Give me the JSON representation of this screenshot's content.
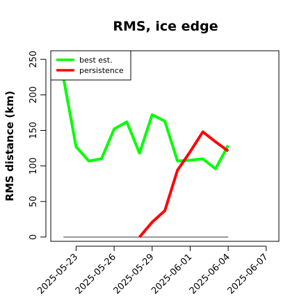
{
  "chart_data": {
    "type": "line",
    "title": "RMS, ice edge",
    "xlabel": "",
    "ylabel": "RMS distance (km)",
    "ylim": [
      -6,
      262
    ],
    "yticks": [
      0,
      50,
      100,
      150,
      200,
      250
    ],
    "xlim": [
      "2025-05-21",
      "2025-06-08"
    ],
    "xticks": [
      "2025-05-23",
      "2025-05-26",
      "2025-05-29",
      "2025-06-01",
      "2025-06-04",
      "2025-06-07"
    ],
    "grid": false,
    "legend_position": "top-left",
    "series": [
      {
        "name": "best est.",
        "color": "#00ff00",
        "x": [
          "2025-05-22",
          "2025-05-23",
          "2025-05-24",
          "2025-05-25",
          "2025-05-26",
          "2025-05-27",
          "2025-05-28",
          "2025-05-29",
          "2025-05-30",
          "2025-05-31",
          "2025-06-01",
          "2025-06-02",
          "2025-06-03",
          "2025-06-04"
        ],
        "values": [
          224,
          127,
          107,
          110,
          152,
          162,
          118,
          172,
          163,
          107,
          108,
          110,
          96,
          129
        ]
      },
      {
        "name": "persistence",
        "color": "#ff0000",
        "x": [
          "2025-05-28",
          "2025-05-29",
          "2025-05-30",
          "2025-05-31",
          "2025-06-01",
          "2025-06-02",
          "2025-06-03",
          "2025-06-04"
        ],
        "values": [
          0,
          21,
          37,
          94,
          120,
          148,
          134,
          121
        ]
      },
      {
        "name": "",
        "color": "#777777",
        "x": [
          "2025-05-22",
          "2025-06-04"
        ],
        "values": [
          0,
          0
        ]
      }
    ]
  }
}
